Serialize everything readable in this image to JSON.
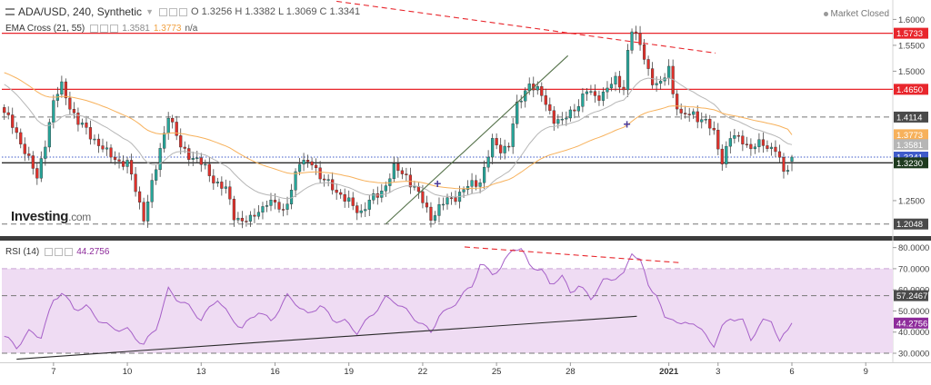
{
  "header": {
    "symbol": "ADA/USD, 240, Synthetic",
    "ohlc": {
      "o": "O 1.3256",
      "h": "H 1.3382",
      "l": "L 1.3069",
      "c": "C 1.3341"
    },
    "ema_label": "EMA Cross (21, 55)",
    "ema_fast_value": "1.3581",
    "ema_slow_value": "1.3773",
    "ema_na": "n/a",
    "rsi_label": "RSI (14)",
    "rsi_value": "44.2756",
    "market_status": "Market Closed",
    "brand": "Investing",
    "brand_suffix": ".com"
  },
  "colors": {
    "up": "#26a69a",
    "down": "#e0312b",
    "ema_fast": "#b6b6b6",
    "ema_slow": "#f7b15b",
    "rsi_line": "#a660c8",
    "rsi_band": "#efdcf3",
    "resistance": "#e8262c",
    "support": "#2a2a2a",
    "trend": "#55724a",
    "price_line": "#3f5bc9",
    "cross_marker": "#4d3d9a"
  },
  "chart_data": [
    {
      "type": "candlestick",
      "title": "ADA/USD, 240, Synthetic",
      "ylim": [
        1.185,
        1.6235
      ],
      "y_ticks": [
        "1.6000",
        "1.5500",
        "1.5000",
        "1.2500"
      ],
      "y_tick_values": [
        1.6,
        1.55,
        1.5,
        1.25
      ],
      "x_ticks": [
        "7",
        "10",
        "13",
        "16",
        "19",
        "22",
        "25",
        "28",
        "2021",
        "3",
        "6",
        "9"
      ],
      "x_tick_days": [
        7,
        10,
        13,
        16,
        19,
        22,
        25,
        28,
        32,
        34,
        37,
        40
      ],
      "x_range_days": [
        4.9,
        41.1
      ],
      "candles_per_day": 6,
      "first_candle_day": 5.0,
      "anchors": [
        [
          0,
          1.42
        ],
        [
          5,
          1.35
        ],
        [
          8,
          1.29
        ],
        [
          12,
          1.44
        ],
        [
          14,
          1.47
        ],
        [
          18,
          1.4
        ],
        [
          22,
          1.37
        ],
        [
          25,
          1.34
        ],
        [
          30,
          1.32
        ],
        [
          34,
          1.22
        ],
        [
          37,
          1.31
        ],
        [
          40,
          1.42
        ],
        [
          43,
          1.35
        ],
        [
          47,
          1.33
        ],
        [
          50,
          1.3
        ],
        [
          54,
          1.27
        ],
        [
          56,
          1.22
        ],
        [
          60,
          1.21
        ],
        [
          64,
          1.25
        ],
        [
          68,
          1.23
        ],
        [
          72,
          1.32
        ],
        [
          75,
          1.33
        ],
        [
          77,
          1.29
        ],
        [
          80,
          1.28
        ],
        [
          83,
          1.25
        ],
        [
          87,
          1.23
        ],
        [
          92,
          1.27
        ],
        [
          95,
          1.31
        ],
        [
          98,
          1.3
        ],
        [
          101,
          1.26
        ],
        [
          104,
          1.22
        ],
        [
          108,
          1.25
        ],
        [
          112,
          1.27
        ],
        [
          116,
          1.29
        ],
        [
          119,
          1.36
        ],
        [
          121,
          1.35
        ],
        [
          123,
          1.36
        ],
        [
          125,
          1.43
        ],
        [
          128,
          1.48
        ],
        [
          131,
          1.45
        ],
        [
          134,
          1.41
        ],
        [
          136,
          1.4
        ],
        [
          139,
          1.43
        ],
        [
          142,
          1.46
        ],
        [
          144,
          1.45
        ],
        [
          146,
          1.46
        ],
        [
          149,
          1.48
        ],
        [
          151,
          1.47
        ],
        [
          152,
          1.54
        ],
        [
          153,
          1.58
        ],
        [
          156,
          1.53
        ],
        [
          158,
          1.48
        ],
        [
          160,
          1.47
        ],
        [
          162,
          1.51
        ],
        [
          163,
          1.46
        ],
        [
          165,
          1.41
        ],
        [
          168,
          1.42
        ],
        [
          171,
          1.4
        ],
        [
          173,
          1.38
        ],
        [
          175,
          1.33
        ],
        [
          177,
          1.37
        ],
        [
          180,
          1.37
        ],
        [
          182,
          1.35
        ],
        [
          185,
          1.36
        ],
        [
          188,
          1.35
        ],
        [
          190,
          1.3
        ],
        [
          192,
          1.33
        ]
      ],
      "last_candle": {
        "o": 1.3256,
        "h": 1.3382,
        "l": 1.3069,
        "c": 1.3341
      },
      "series": [
        {
          "name": "EMA 21",
          "color_key": "ema_fast",
          "last": 1.3581
        },
        {
          "name": "EMA 55",
          "color_key": "ema_slow",
          "last": 1.3773
        }
      ],
      "horizontal_lines": [
        {
          "value": 1.5733,
          "style": "solid",
          "color_key": "resistance",
          "label": "1.5733",
          "label_bg": "#e8262c"
        },
        {
          "value": 1.465,
          "style": "solid",
          "color_key": "resistance",
          "label": "1.4650",
          "label_bg": "#e8262c"
        },
        {
          "value": 1.4114,
          "style": "dashed",
          "color": "#777777",
          "label": "1.4114",
          "label_bg": "#4a4a4a"
        },
        {
          "value": 1.3341,
          "style": "dotted",
          "color_key": "price_line",
          "label": "1.3341",
          "label_bg": "#3f5bc9"
        },
        {
          "value": 1.323,
          "style": "solid",
          "color_key": "support",
          "label": "1.3230",
          "label_bg": "#1e3a1e"
        },
        {
          "value": 1.2048,
          "style": "dashed",
          "color": "#777777",
          "label": "1.2048",
          "label_bg": "#4a4a4a"
        }
      ],
      "value_labels": [
        {
          "label": "1.3773",
          "value": 1.3773,
          "bg": "#f7b15b"
        },
        {
          "label": "1.3581",
          "value": 1.3581,
          "bg": "#b6b6b6"
        }
      ],
      "trendlines": [
        {
          "from": [
            20.5,
            1.205
          ],
          "to": [
            27.9,
            1.53
          ],
          "style": "solid",
          "color_key": "trend"
        },
        {
          "from": [
            18.5,
            1.635
          ],
          "to": [
            33.9,
            1.535
          ],
          "style": "dashed",
          "color_key": "resistance"
        }
      ],
      "markers": [
        {
          "day": 22.6,
          "value": 1.283,
          "symbol": "+"
        },
        {
          "day": 30.3,
          "value": 1.398,
          "symbol": "+"
        }
      ]
    },
    {
      "type": "line",
      "title": "RSI (14)",
      "ylim": [
        27.0,
        82.0
      ],
      "y_ticks": [
        "80.0000",
        "70.0000",
        "60.0000",
        "50.0000",
        "40.0000",
        "30.0000"
      ],
      "y_tick_values": [
        80,
        70,
        60,
        50,
        40,
        30
      ],
      "band": [
        30,
        70
      ],
      "series": [
        {
          "name": "RSI",
          "color_key": "rsi_line",
          "anchors": [
            [
              0,
              38
            ],
            [
              3,
              33
            ],
            [
              6,
              40
            ],
            [
              9,
              38
            ],
            [
              12,
              55
            ],
            [
              14,
              59
            ],
            [
              17,
              51
            ],
            [
              20,
              52
            ],
            [
              23,
              46
            ],
            [
              26,
              42
            ],
            [
              30,
              41
            ],
            [
              34,
              34
            ],
            [
              37,
              42
            ],
            [
              40,
              60
            ],
            [
              42,
              56
            ],
            [
              45,
              52
            ],
            [
              48,
              46
            ],
            [
              52,
              56
            ],
            [
              55,
              47
            ],
            [
              58,
              42
            ],
            [
              62,
              50
            ],
            [
              65,
              45
            ],
            [
              69,
              57
            ],
            [
              71,
              54
            ],
            [
              74,
              48
            ],
            [
              77,
              53
            ],
            [
              80,
              46
            ],
            [
              83,
              45
            ],
            [
              86,
              40
            ],
            [
              90,
              49
            ],
            [
              93,
              56
            ],
            [
              95,
              55
            ],
            [
              98,
              50
            ],
            [
              101,
              45
            ],
            [
              104,
              40
            ],
            [
              106,
              48
            ],
            [
              108,
              50
            ],
            [
              111,
              56
            ],
            [
              114,
              62
            ],
            [
              116,
              72
            ],
            [
              119,
              68
            ],
            [
              121,
              70
            ],
            [
              124,
              80
            ],
            [
              126,
              79
            ],
            [
              128,
              72
            ],
            [
              131,
              69
            ],
            [
              133,
              63
            ],
            [
              136,
              66
            ],
            [
              138,
              59
            ],
            [
              140,
              62
            ],
            [
              143,
              56
            ],
            [
              146,
              64
            ],
            [
              149,
              66
            ],
            [
              151,
              67
            ],
            [
              153,
              78
            ],
            [
              155,
              74
            ],
            [
              157,
              62
            ],
            [
              159,
              58
            ],
            [
              161,
              46
            ],
            [
              163,
              47
            ],
            [
              165,
              43
            ],
            [
              168,
              45
            ],
            [
              171,
              38
            ],
            [
              173,
              34
            ],
            [
              175,
              42
            ],
            [
              177,
              47
            ],
            [
              180,
              45
            ],
            [
              182,
              37
            ],
            [
              185,
              45
            ],
            [
              187,
              46
            ],
            [
              189,
              35
            ],
            [
              192,
              44.2756
            ]
          ]
        }
      ],
      "horizontal_lines": [
        {
          "value": 57.2467,
          "style": "dashed",
          "color": "#777777",
          "label": "57.2467",
          "label_bg": "#4a4a4a"
        },
        {
          "value": 30.0,
          "style": "dashed",
          "color": "#777777"
        },
        {
          "value": 70.0,
          "style": "dashed",
          "color": "#c9a3d5"
        }
      ],
      "value_labels": [
        {
          "label": "44.2756",
          "value": 44.2756,
          "bg": "#8e2c9b"
        }
      ],
      "trendlines": [
        {
          "from": [
            5.5,
            27.2
          ],
          "to": [
            30.7,
            47.5
          ],
          "style": "solid",
          "color_key": "support"
        },
        {
          "from": [
            23.7,
            80.3
          ],
          "to": [
            32.5,
            72.8
          ],
          "style": "dashed",
          "color_key": "resistance"
        }
      ]
    }
  ]
}
